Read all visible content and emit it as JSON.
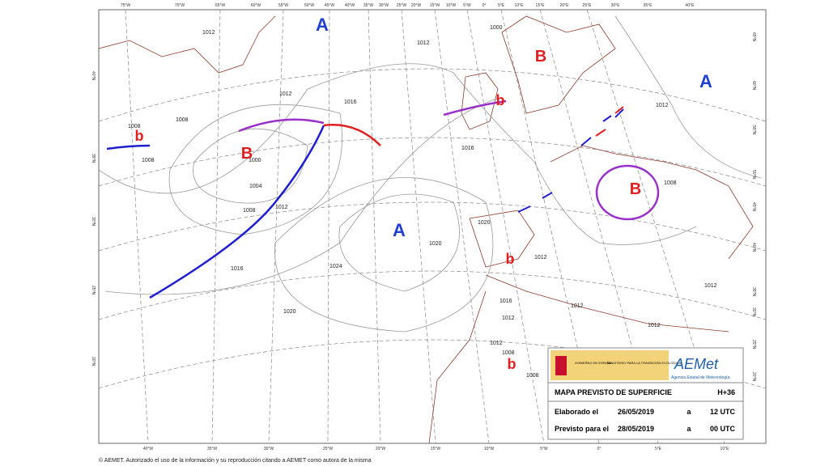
{
  "map": {
    "top_labels": [
      "75°W",
      "70°W",
      "65°W",
      "60°W",
      "55°W",
      "50°W",
      "45°W",
      "40°W",
      "35°W",
      "30°W",
      "25°W",
      "20°W",
      "15°W",
      "10°W",
      "5°W",
      "0°",
      "5°E",
      "10°E",
      "15°E",
      "20°E",
      "25°E",
      "30°E",
      "35°E",
      "40°E"
    ],
    "bottom_labels": [
      "40°W",
      "35°W",
      "30°W",
      "25°W",
      "20°W",
      "15°W",
      "10°W",
      "5°W",
      "0°",
      "5°E",
      "10°E"
    ],
    "left_labels": [
      "40°N",
      "35°N",
      "30°N",
      "25°N",
      "20°N"
    ],
    "right_labels": [
      "65°N",
      "60°N",
      "55°N",
      "50°N",
      "45°N",
      "40°N",
      "35°N",
      "30°N",
      "25°N",
      "20°N"
    ],
    "centers": [
      "A",
      "A",
      "B",
      "b",
      "b",
      "B",
      "B",
      "A",
      "b",
      "b"
    ],
    "isobar_labels": [
      "1012",
      "1000",
      "1012",
      "1016",
      "1012",
      "1008",
      "1008",
      "1008",
      "1000",
      "1004",
      "1008",
      "1012",
      "1016",
      "1020",
      "1024",
      "1020",
      "1016",
      "1020",
      "1012",
      "1012",
      "1016",
      "1012",
      "1012",
      "1012",
      "1008",
      "1008",
      "1012",
      "1012",
      "1008"
    ]
  },
  "info": {
    "gov": "GOBIERNO DE ESPAÑA",
    "ministry": "MINISTERIO PARA LA TRANSICIÓN ECOLÓGICA",
    "brand": "AEMet",
    "brand_sub": "Agencia Estatal de Meteorología",
    "title": "MAPA PREVISTO DE SUPERFICIE",
    "horizon": "H+36",
    "row1": [
      "Elaborado el",
      "26/05/2019",
      "a",
      "12 UTC"
    ],
    "row2": [
      "Previsto para el",
      "28/05/2019",
      "a",
      "00 UTC"
    ]
  },
  "footer": "© AEMET. Autorizado el uso de la información y su reproducción citando a AEMET como autora de la misma"
}
